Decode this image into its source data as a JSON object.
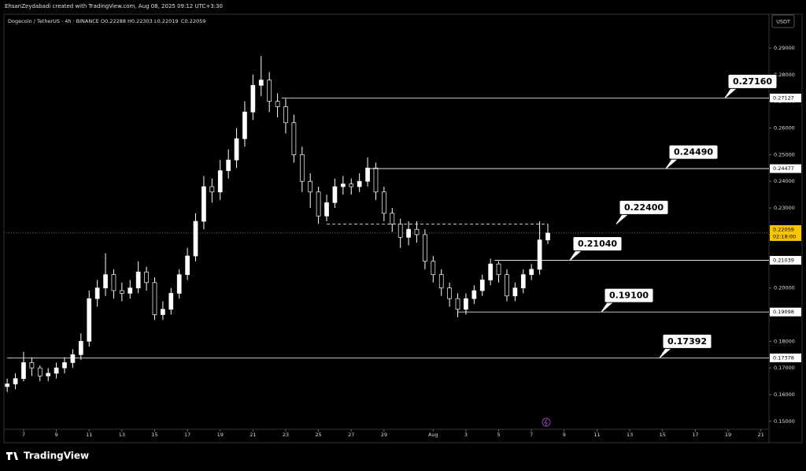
{
  "credit": "EhsanZeydabadi created with TradingView.com, Aug 08, 2025 09:12 UTC+3:30",
  "footer": {
    "logo": "TradingView"
  },
  "chart_data": {
    "type": "candlestick",
    "symbol": "Dogecoin / TetherUS · 4h · BINANCE",
    "ohlc_text": [
      "O0.22288",
      "H0.22303",
      "L0.22019",
      "C0.22059"
    ],
    "currency": "USDT",
    "up_color": "#ffffff",
    "down_color": "#000000",
    "wick_color": "#ffffff",
    "x": [
      6.0,
      6.5,
      7.0,
      7.5,
      8.0,
      8.5,
      9.0,
      9.5,
      10.0,
      10.5,
      11.0,
      11.5,
      12.0,
      12.5,
      13.0,
      13.5,
      14.0,
      14.5,
      15.0,
      15.5,
      16.0,
      16.5,
      17.0,
      17.5,
      18.0,
      18.5,
      19.0,
      19.5,
      20.0,
      20.5,
      21.0,
      21.5,
      22.0,
      22.5,
      23.0,
      23.5,
      24.0,
      24.5,
      25.0,
      25.5,
      26.0,
      26.5,
      27.0,
      27.5,
      28.0,
      28.5,
      29.0,
      29.5,
      30.0,
      30.5,
      31.0,
      31.5,
      32.0,
      32.5,
      33.0,
      33.5,
      34.0,
      34.5,
      35.0,
      35.5,
      36.0,
      36.5,
      37.0,
      37.5,
      38.0,
      38.5,
      39.0
    ],
    "open": [
      0.163,
      0.164,
      0.166,
      0.172,
      0.17,
      0.167,
      0.168,
      0.17,
      0.172,
      0.175,
      0.18,
      0.196,
      0.2,
      0.205,
      0.199,
      0.198,
      0.2,
      0.206,
      0.202,
      0.19,
      0.192,
      0.198,
      0.205,
      0.212,
      0.225,
      0.238,
      0.236,
      0.244,
      0.248,
      0.256,
      0.266,
      0.276,
      0.278,
      0.27,
      0.268,
      0.262,
      0.25,
      0.24,
      0.236,
      0.227,
      0.232,
      0.238,
      0.239,
      0.238,
      0.24,
      0.245,
      0.236,
      0.228,
      0.224,
      0.219,
      0.222,
      0.22,
      0.21,
      0.205,
      0.2,
      0.196,
      0.192,
      0.196,
      0.199,
      0.203,
      0.209,
      0.205,
      0.197,
      0.2,
      0.205,
      0.207,
      0.218
    ],
    "high": [
      0.166,
      0.168,
      0.176,
      0.174,
      0.171,
      0.17,
      0.172,
      0.174,
      0.177,
      0.183,
      0.199,
      0.203,
      0.213,
      0.207,
      0.202,
      0.203,
      0.21,
      0.208,
      0.204,
      0.195,
      0.2,
      0.207,
      0.215,
      0.228,
      0.242,
      0.241,
      0.248,
      0.252,
      0.26,
      0.27,
      0.28,
      0.287,
      0.281,
      0.273,
      0.271,
      0.265,
      0.253,
      0.243,
      0.238,
      0.235,
      0.241,
      0.242,
      0.241,
      0.243,
      0.249,
      0.247,
      0.238,
      0.23,
      0.226,
      0.225,
      0.225,
      0.222,
      0.212,
      0.207,
      0.202,
      0.198,
      0.198,
      0.201,
      0.205,
      0.211,
      0.21,
      0.207,
      0.202,
      0.207,
      0.209,
      0.225,
      0.224
    ],
    "low": [
      0.161,
      0.162,
      0.165,
      0.167,
      0.165,
      0.165,
      0.166,
      0.168,
      0.17,
      0.173,
      0.178,
      0.193,
      0.197,
      0.196,
      0.195,
      0.196,
      0.198,
      0.199,
      0.188,
      0.188,
      0.19,
      0.196,
      0.203,
      0.21,
      0.222,
      0.232,
      0.233,
      0.241,
      0.245,
      0.253,
      0.263,
      0.272,
      0.266,
      0.264,
      0.258,
      0.247,
      0.236,
      0.23,
      0.224,
      0.225,
      0.23,
      0.235,
      0.235,
      0.236,
      0.238,
      0.233,
      0.225,
      0.221,
      0.215,
      0.216,
      0.217,
      0.207,
      0.202,
      0.197,
      0.193,
      0.189,
      0.19,
      0.194,
      0.197,
      0.201,
      0.202,
      0.195,
      0.195,
      0.198,
      0.203,
      0.205,
      0.2165
    ],
    "close": [
      0.164,
      0.166,
      0.172,
      0.17,
      0.167,
      0.168,
      0.17,
      0.172,
      0.175,
      0.18,
      0.196,
      0.2,
      0.205,
      0.199,
      0.198,
      0.2,
      0.206,
      0.202,
      0.19,
      0.192,
      0.198,
      0.205,
      0.212,
      0.225,
      0.238,
      0.236,
      0.244,
      0.248,
      0.256,
      0.266,
      0.276,
      0.278,
      0.27,
      0.268,
      0.262,
      0.25,
      0.24,
      0.236,
      0.227,
      0.232,
      0.238,
      0.239,
      0.238,
      0.24,
      0.245,
      0.236,
      0.228,
      0.224,
      0.219,
      0.222,
      0.22,
      0.21,
      0.205,
      0.2,
      0.196,
      0.192,
      0.196,
      0.199,
      0.203,
      0.209,
      0.205,
      0.197,
      0.2,
      0.205,
      0.207,
      0.218,
      0.2206
    ],
    "xlim": [
      5.8,
      52.5
    ],
    "xticks": [
      7,
      9,
      11,
      13,
      15,
      17,
      19,
      21,
      23,
      25,
      27,
      29,
      {
        "value": 32,
        "label": "Aug"
      },
      {
        "value": 34,
        "label": "3"
      },
      {
        "value": 36,
        "label": "5"
      },
      {
        "value": 38,
        "label": "7"
      },
      {
        "value": 40,
        "label": "9"
      },
      {
        "value": 42,
        "label": "11"
      },
      {
        "value": 44,
        "label": "13"
      },
      {
        "value": 46,
        "label": "15"
      },
      {
        "value": 48,
        "label": "17"
      },
      {
        "value": 50,
        "label": "19"
      },
      {
        "value": 52,
        "label": "21"
      }
    ],
    "ylim": [
      0.147,
      0.3027
    ],
    "yticks": [
      {
        "value": 0.15,
        "label": "0.15000"
      },
      {
        "value": 0.16,
        "label": "0.16000"
      },
      {
        "value": 0.17,
        "label": "0.17000"
      },
      {
        "value": 0.18,
        "label": "0.18000"
      },
      {
        "value": 0.19,
        "label": "0.19000"
      },
      {
        "value": 0.2,
        "label": "0.20000"
      },
      {
        "value": 0.21,
        "label": "0.21000"
      },
      {
        "value": 0.22,
        "label": "0.22000"
      },
      {
        "value": 0.23,
        "label": "0.23000"
      },
      {
        "value": 0.24,
        "label": "0.24000"
      },
      {
        "value": 0.25,
        "label": "0.25000"
      },
      {
        "value": 0.26,
        "label": "0.26000"
      },
      {
        "value": 0.27,
        "label": "0.27000"
      },
      {
        "value": 0.28,
        "label": "0.28000"
      },
      {
        "value": 0.29,
        "label": "0.29000"
      }
    ],
    "levels": [
      {
        "line": 0.27127,
        "start": 22.75,
        "dashed": false,
        "callout": {
          "value": 0.2716,
          "label": "0.27160"
        }
      },
      {
        "line": 0.24477,
        "start": 28.0,
        "dashed": false,
        "callout": {
          "value": 0.2449,
          "label": "0.24490"
        }
      },
      {
        "start": 25.5,
        "end": 39.0,
        "dashed": true,
        "callout": {
          "value": 0.224,
          "label": "0.22400"
        }
      },
      {
        "line": 0.21039,
        "start": 35.75,
        "dashed": false,
        "callout": {
          "value": 0.2104,
          "label": "0.21040"
        }
      },
      {
        "line": 0.19098,
        "start": 33.5,
        "dashed": false,
        "callout": {
          "value": 0.191,
          "label": "0.19100"
        }
      },
      {
        "line": 0.17378,
        "start": 6.0,
        "dashed": false,
        "callout": 0.17392
      }
    ],
    "last": {
      "value": 0.22059,
      "countdown": "02:18:00",
      "color": "#f7c600"
    }
  }
}
